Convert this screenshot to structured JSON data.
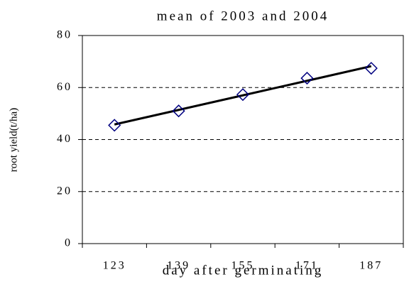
{
  "chart_data": {
    "type": "line",
    "title": "mean of 2003 and 2004",
    "x_label": "day after germinating",
    "y_label": "root yield(t/ha)",
    "categories": [
      "123",
      "139",
      "155",
      "171",
      "187"
    ],
    "series": [
      {
        "color": "#000080",
        "marker": "diamond",
        "values": [
          45.5,
          51,
          57.3,
          63.6,
          67.4
        ]
      }
    ],
    "trendline": {
      "color": "#000000",
      "values": [
        45.8,
        51.4,
        57.0,
        62.6,
        68.2
      ]
    },
    "ylim": [
      0,
      80
    ],
    "yticks": [
      0,
      20,
      40,
      60,
      80
    ],
    "grid": true
  }
}
